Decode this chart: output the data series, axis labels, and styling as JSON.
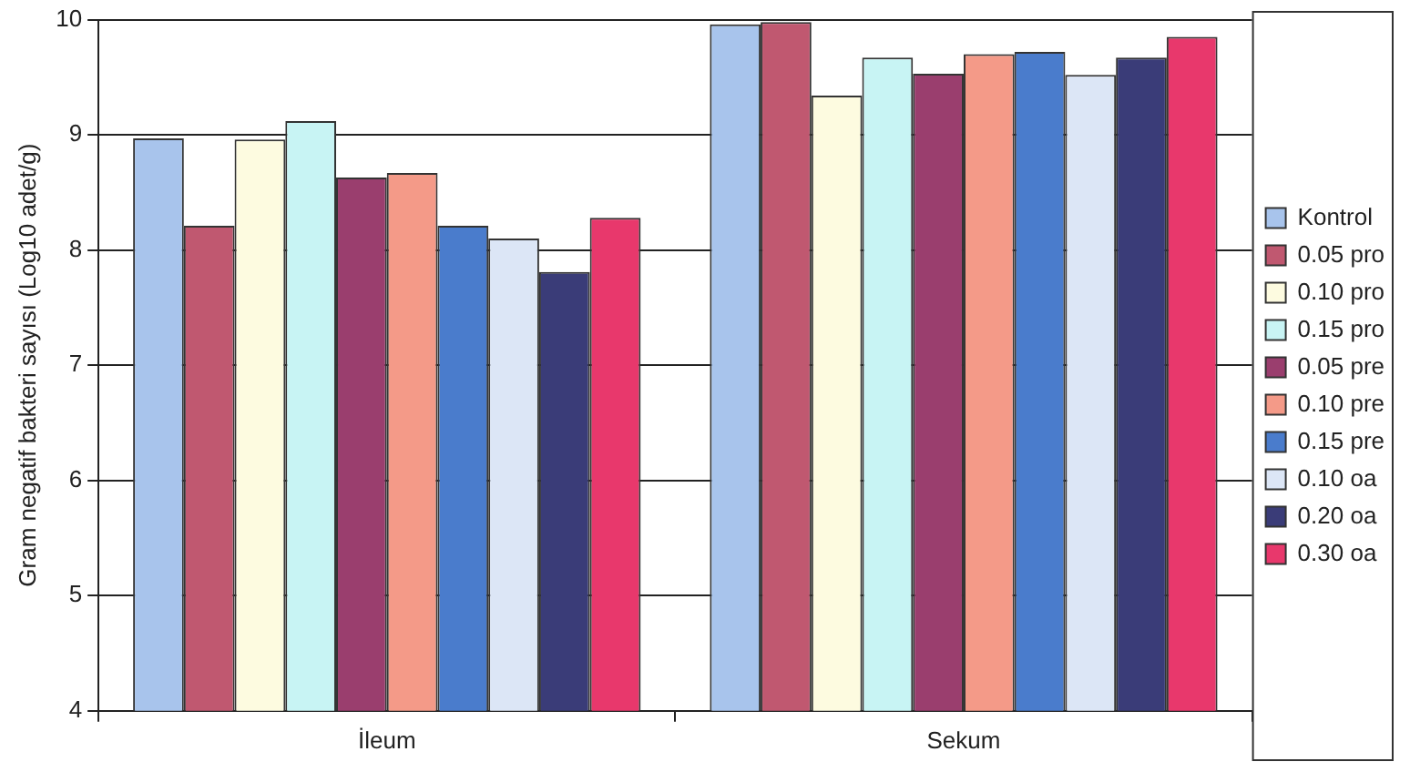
{
  "chart_data": {
    "type": "bar",
    "ylabel": "Gram negatif bakteri sayısı (Log10 adet/g)",
    "categories": [
      "İleum",
      "Sekum"
    ],
    "series": [
      {
        "name": "Kontrol",
        "color": "#a8c4ec",
        "values": [
          8.97,
          9.96
        ]
      },
      {
        "name": "0.05 pro",
        "color": "#c05870",
        "values": [
          8.21,
          9.98
        ]
      },
      {
        "name": "0.10 pro",
        "color": "#fdfbe0",
        "values": [
          8.96,
          9.34
        ]
      },
      {
        "name": "0.15 pro",
        "color": "#c8f4f4",
        "values": [
          9.12,
          9.67
        ]
      },
      {
        "name": "0.05 pre",
        "color": "#9a3e6e",
        "values": [
          8.63,
          9.53
        ]
      },
      {
        "name": "0.10 pre",
        "color": "#f49a88",
        "values": [
          8.67,
          9.7
        ]
      },
      {
        "name": "0.15 pre",
        "color": "#4a7ccc",
        "values": [
          8.21,
          9.72
        ]
      },
      {
        "name": "0.10 oa",
        "color": "#dce6f6",
        "values": [
          8.1,
          9.52
        ]
      },
      {
        "name": "0.20 oa",
        "color": "#3a3c78",
        "values": [
          7.81,
          9.67
        ]
      },
      {
        "name": "0.30 oa",
        "color": "#e8386c",
        "values": [
          8.28,
          9.85
        ]
      }
    ],
    "ylim": [
      4,
      10
    ],
    "yticks": [
      4,
      5,
      6,
      7,
      8,
      9,
      10
    ],
    "grid": "y",
    "legend": "right"
  }
}
